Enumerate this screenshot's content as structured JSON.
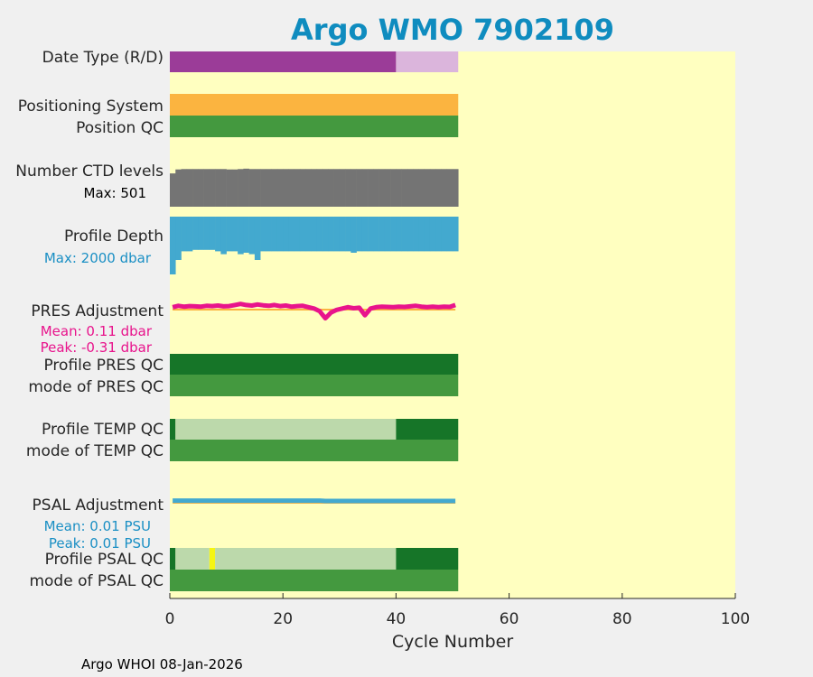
{
  "title": "Argo WMO 7902109",
  "footer": "Argo WHOI 08-Jan-2026",
  "colors": {
    "plot_bg": "#ffffc0",
    "title": "#0f8cbf",
    "purple": "#9b3c98",
    "light_purple": "#dbb5dc",
    "orange": "#fbb440",
    "green": "#44993f",
    "dark_green": "#167528",
    "light_green": "#bcd9ab",
    "gray": "#747474",
    "blue": "#43a9cf",
    "magenta": "#e8148c",
    "yellow": "#f5f513",
    "pink_text": "#e8148c",
    "blue_text": "#1a8fc4"
  },
  "labels": {
    "date_type": "Date Type (R/D)",
    "positioning_system": "Positioning System",
    "position_qc": "Position QC",
    "num_ctd_levels": "Number CTD levels",
    "ctd_max": "Max: 501",
    "profile_depth": "Profile Depth",
    "depth_max": "Max: 2000 dbar",
    "pres_adjustment": "PRES Adjustment",
    "pres_mean": "Mean: 0.11 dbar",
    "pres_peak": "Peak: -0.31 dbar",
    "profile_pres_qc": "Profile PRES QC",
    "mode_pres_qc": "mode of PRES QC",
    "profile_temp_qc": "Profile TEMP QC",
    "mode_temp_qc": "mode of TEMP QC",
    "psal_adjustment": "PSAL Adjustment",
    "psal_mean": "Mean: 0.01 PSU",
    "psal_peak": "Peak: 0.01 PSU",
    "profile_psal_qc": "Profile PSAL QC",
    "mode_psal_qc": "mode of PSAL QC"
  },
  "chart_data": {
    "type": "bar",
    "title": "Argo WMO 7902109",
    "xlabel": "Cycle Number",
    "xlim": [
      0,
      100
    ],
    "xticks": [
      0,
      20,
      40,
      60,
      80,
      100
    ],
    "n_cycles": 51,
    "rows": [
      {
        "name": "Date Type (R/D)",
        "segments": [
          {
            "from": 0,
            "to": 40,
            "value": "R",
            "color": "purple"
          },
          {
            "from": 40,
            "to": 51,
            "value": "D",
            "color": "light_purple"
          }
        ]
      },
      {
        "name": "Positioning System",
        "segments": [
          {
            "from": 0,
            "to": 51,
            "color": "orange"
          }
        ]
      },
      {
        "name": "Position QC",
        "segments": [
          {
            "from": 0,
            "to": 51,
            "color": "green"
          }
        ]
      },
      {
        "name": "Profile PRES QC",
        "segments": [
          {
            "from": 0,
            "to": 51,
            "color": "dark_green"
          }
        ]
      },
      {
        "name": "mode of PRES QC",
        "segments": [
          {
            "from": 0,
            "to": 51,
            "color": "green"
          }
        ]
      },
      {
        "name": "Profile TEMP QC",
        "segments": [
          {
            "from": 0,
            "to": 1,
            "color": "dark_green"
          },
          {
            "from": 1,
            "to": 40,
            "color": "light_green"
          },
          {
            "from": 40,
            "to": 51,
            "color": "dark_green"
          }
        ]
      },
      {
        "name": "mode of TEMP QC",
        "segments": [
          {
            "from": 0,
            "to": 51,
            "color": "green"
          }
        ]
      },
      {
        "name": "Profile PSAL QC",
        "segments": [
          {
            "from": 0,
            "to": 1,
            "color": "dark_green"
          },
          {
            "from": 1,
            "to": 7,
            "color": "light_green"
          },
          {
            "from": 7,
            "to": 8,
            "color": "yellow"
          },
          {
            "from": 8,
            "to": 40,
            "color": "light_green"
          },
          {
            "from": 40,
            "to": 51,
            "color": "dark_green"
          }
        ]
      },
      {
        "name": "mode of PSAL QC",
        "segments": [
          {
            "from": 0,
            "to": 51,
            "color": "green"
          }
        ]
      }
    ],
    "ctd_levels": {
      "max": 501,
      "values": [
        420,
        470,
        475,
        475,
        475,
        475,
        475,
        475,
        475,
        475,
        470,
        470,
        475,
        480,
        475,
        475,
        475,
        475,
        475,
        475,
        475,
        475,
        475,
        475,
        475,
        475,
        475,
        475,
        475,
        475,
        475,
        475,
        475,
        475,
        475,
        475,
        475,
        475,
        475,
        475,
        475,
        475,
        475,
        475,
        475,
        475,
        475,
        475,
        475,
        475,
        475
      ]
    },
    "profile_depth": {
      "max": 2000,
      "values": [
        2000,
        1500,
        1200,
        1200,
        1150,
        1150,
        1150,
        1150,
        1200,
        1300,
        1200,
        1200,
        1300,
        1250,
        1300,
        1500,
        1200,
        1200,
        1200,
        1200,
        1200,
        1200,
        1200,
        1200,
        1200,
        1200,
        1200,
        1200,
        1200,
        1200,
        1200,
        1200,
        1250,
        1200,
        1200,
        1200,
        1200,
        1200,
        1200,
        1200,
        1200,
        1200,
        1200,
        1200,
        1200,
        1200,
        1200,
        1200,
        1200,
        1200,
        1200
      ]
    },
    "pres_adjustment": {
      "mean": 0.11,
      "peak": -0.31,
      "values": [
        0.1,
        0.15,
        0.12,
        0.14,
        0.13,
        0.12,
        0.15,
        0.14,
        0.16,
        0.13,
        0.14,
        0.18,
        0.22,
        0.18,
        0.16,
        0.2,
        0.17,
        0.15,
        0.18,
        0.14,
        0.16,
        0.12,
        0.14,
        0.15,
        0.1,
        0.05,
        -0.05,
        -0.31,
        -0.1,
        0.0,
        0.05,
        0.1,
        0.06,
        0.08,
        -0.2,
        0.05,
        0.1,
        0.12,
        0.11,
        0.1,
        0.12,
        0.11,
        0.13,
        0.15,
        0.12,
        0.1,
        0.12,
        0.1,
        0.12,
        0.11,
        0.18
      ]
    },
    "psal_adjustment": {
      "mean": 0.01,
      "peak": 0.01,
      "values": [
        0.01,
        0.01,
        0.01,
        0.01,
        0.01,
        0.01,
        0.01,
        0.01,
        0.01,
        0.01,
        0.01,
        0.01,
        0.01,
        0.01,
        0.01,
        0.01,
        0.01,
        0.01,
        0.01,
        0.01,
        0.01,
        0.01,
        0.01,
        0.01,
        0.01,
        0.01,
        0.01,
        0.009,
        0.009,
        0.009,
        0.009,
        0.009,
        0.009,
        0.009,
        0.009,
        0.009,
        0.009,
        0.009,
        0.009,
        0.009,
        0.009,
        0.009,
        0.009,
        0.009,
        0.009,
        0.009,
        0.009,
        0.009,
        0.009,
        0.009,
        0.009
      ]
    }
  }
}
